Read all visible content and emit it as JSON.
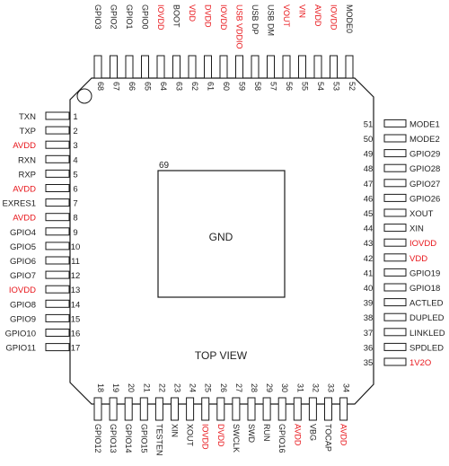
{
  "diagram": {
    "view_label": "TOP VIEW",
    "center_pad": {
      "number": "69",
      "name": "GND"
    },
    "colors": {
      "power": "#e8161b",
      "signal": "#222222",
      "outline": "#1a1a1a"
    },
    "left_pins": [
      {
        "num": "1",
        "name": "TXN",
        "power": false
      },
      {
        "num": "2",
        "name": "TXP",
        "power": false
      },
      {
        "num": "3",
        "name": "AVDD",
        "power": true
      },
      {
        "num": "4",
        "name": "RXN",
        "power": false
      },
      {
        "num": "5",
        "name": "RXP",
        "power": false
      },
      {
        "num": "6",
        "name": "AVDD",
        "power": true
      },
      {
        "num": "7",
        "name": "EXRES1",
        "power": false
      },
      {
        "num": "8",
        "name": "AVDD",
        "power": true
      },
      {
        "num": "9",
        "name": "GPIO4",
        "power": false
      },
      {
        "num": "10",
        "name": "GPIO5",
        "power": false
      },
      {
        "num": "11",
        "name": "GPIO6",
        "power": false
      },
      {
        "num": "12",
        "name": "GPIO7",
        "power": false
      },
      {
        "num": "13",
        "name": "IOVDD",
        "power": true
      },
      {
        "num": "14",
        "name": "GPIO8",
        "power": false
      },
      {
        "num": "15",
        "name": "GPIO9",
        "power": false
      },
      {
        "num": "16",
        "name": "GPIO10",
        "power": false
      },
      {
        "num": "17",
        "name": "GPIO11",
        "power": false
      }
    ],
    "bottom_pins": [
      {
        "num": "18",
        "name": "GPIO12",
        "power": false
      },
      {
        "num": "19",
        "name": "GPIO13",
        "power": false
      },
      {
        "num": "20",
        "name": "GPIO14",
        "power": false
      },
      {
        "num": "21",
        "name": "GPIO15",
        "power": false
      },
      {
        "num": "22",
        "name": "TESTEN",
        "power": false
      },
      {
        "num": "23",
        "name": "XIN",
        "power": false
      },
      {
        "num": "24",
        "name": "XOUT",
        "power": false
      },
      {
        "num": "25",
        "name": "IOVDD",
        "power": true
      },
      {
        "num": "26",
        "name": "DVDD",
        "power": true
      },
      {
        "num": "27",
        "name": "SWCLK",
        "power": false
      },
      {
        "num": "28",
        "name": "SWD",
        "power": false
      },
      {
        "num": "29",
        "name": "RUN",
        "power": false
      },
      {
        "num": "30",
        "name": "GPIO16",
        "power": false
      },
      {
        "num": "31",
        "name": "AVDD",
        "power": true
      },
      {
        "num": "32",
        "name": "VBG",
        "power": false
      },
      {
        "num": "33",
        "name": "TOCAP",
        "power": false
      },
      {
        "num": "34",
        "name": "AVDD",
        "power": true
      }
    ],
    "right_pins": [
      {
        "num": "35",
        "name": "1V2O",
        "power": true
      },
      {
        "num": "36",
        "name": "SPDLED",
        "power": false
      },
      {
        "num": "37",
        "name": "LINKLED",
        "power": false
      },
      {
        "num": "38",
        "name": "DUPLED",
        "power": false
      },
      {
        "num": "39",
        "name": "ACTLED",
        "power": false
      },
      {
        "num": "40",
        "name": "GPIO18",
        "power": false
      },
      {
        "num": "41",
        "name": "GPIO19",
        "power": false
      },
      {
        "num": "42",
        "name": "VDD",
        "power": true
      },
      {
        "num": "43",
        "name": "IOVDD",
        "power": true
      },
      {
        "num": "44",
        "name": "XIN",
        "power": false
      },
      {
        "num": "45",
        "name": "XOUT",
        "power": false
      },
      {
        "num": "46",
        "name": "GPIO26",
        "power": false
      },
      {
        "num": "47",
        "name": "GPIO27",
        "power": false
      },
      {
        "num": "48",
        "name": "GPIO28",
        "power": false
      },
      {
        "num": "49",
        "name": "GPIO29",
        "power": false
      },
      {
        "num": "50",
        "name": "MODE2",
        "power": false
      },
      {
        "num": "51",
        "name": "MODE1",
        "power": false
      }
    ],
    "top_pins": [
      {
        "num": "52",
        "name": "MODE0",
        "power": false
      },
      {
        "num": "53",
        "name": "IOVDD",
        "power": true
      },
      {
        "num": "54",
        "name": "AVDD",
        "power": true
      },
      {
        "num": "55",
        "name": "VIN",
        "power": true
      },
      {
        "num": "56",
        "name": "VOUT",
        "power": true
      },
      {
        "num": "57",
        "name": "USB DM",
        "power": false
      },
      {
        "num": "58",
        "name": "USB DP",
        "power": false
      },
      {
        "num": "59",
        "name": "USB VDDIO",
        "power": true
      },
      {
        "num": "60",
        "name": "IOVDD",
        "power": true
      },
      {
        "num": "61",
        "name": "DVDD",
        "power": true
      },
      {
        "num": "62",
        "name": "VDD",
        "power": true
      },
      {
        "num": "63",
        "name": "BOOT",
        "power": false
      },
      {
        "num": "64",
        "name": "IOVDD",
        "power": true
      },
      {
        "num": "65",
        "name": "GPIO0",
        "power": false
      },
      {
        "num": "66",
        "name": "GPIO1",
        "power": false
      },
      {
        "num": "67",
        "name": "GPIO2",
        "power": false
      },
      {
        "num": "68",
        "name": "GPIO3",
        "power": false
      }
    ]
  }
}
